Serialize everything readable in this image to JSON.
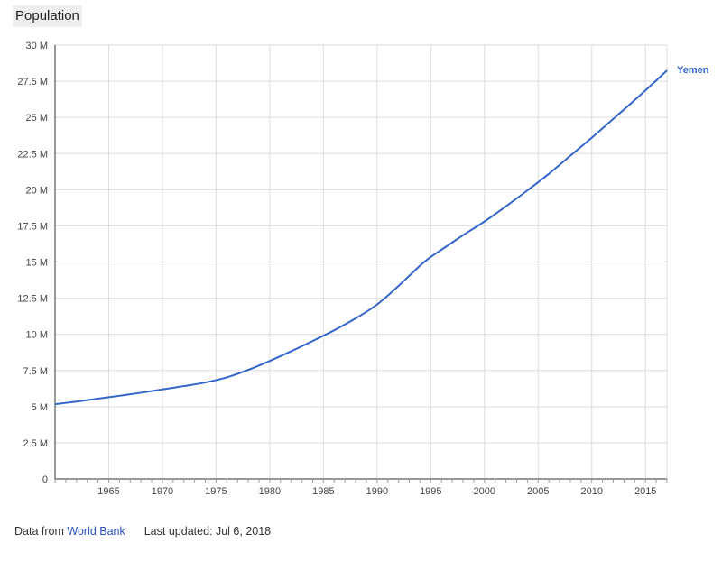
{
  "header": {
    "title": "Population"
  },
  "chart_data": {
    "type": "line",
    "title": "Population",
    "xlabel": "",
    "ylabel": "",
    "xlim": [
      1960,
      2017
    ],
    "ylim": [
      0,
      30000000
    ],
    "grid": true,
    "y_ticks": [
      {
        "value": 0,
        "label": "0"
      },
      {
        "value": 2500000,
        "label": "2.5 M"
      },
      {
        "value": 5000000,
        "label": "5 M"
      },
      {
        "value": 7500000,
        "label": "7.5 M"
      },
      {
        "value": 10000000,
        "label": "10 M"
      },
      {
        "value": 12500000,
        "label": "12.5 M"
      },
      {
        "value": 15000000,
        "label": "15 M"
      },
      {
        "value": 17500000,
        "label": "17.5 M"
      },
      {
        "value": 20000000,
        "label": "20 M"
      },
      {
        "value": 22500000,
        "label": "22.5 M"
      },
      {
        "value": 25000000,
        "label": "25 M"
      },
      {
        "value": 27500000,
        "label": "27.5 M"
      },
      {
        "value": 30000000,
        "label": "30 M"
      }
    ],
    "x_ticks": [
      {
        "value": 1965,
        "label": "1965"
      },
      {
        "value": 1970,
        "label": "1970"
      },
      {
        "value": 1975,
        "label": "1975"
      },
      {
        "value": 1980,
        "label": "1980"
      },
      {
        "value": 1985,
        "label": "1985"
      },
      {
        "value": 1990,
        "label": "1990"
      },
      {
        "value": 1995,
        "label": "1995"
      },
      {
        "value": 2000,
        "label": "2000"
      },
      {
        "value": 2005,
        "label": "2005"
      },
      {
        "value": 2010,
        "label": "2010"
      },
      {
        "value": 2015,
        "label": "2015"
      }
    ],
    "series": [
      {
        "name": "Yemen",
        "color": "#3366cc",
        "x": [
          1960,
          1962,
          1964,
          1966,
          1968,
          1970,
          1972,
          1974,
          1976,
          1978,
          1980,
          1982,
          1984,
          1986,
          1988,
          1990,
          1992,
          1994,
          1995,
          1996,
          1998,
          2000,
          2002,
          2004,
          2006,
          2008,
          2010,
          2012,
          2014,
          2016,
          2017
        ],
        "y": [
          5170000,
          5350000,
          5550000,
          5750000,
          5960000,
          6190000,
          6420000,
          6670000,
          7020000,
          7540000,
          8160000,
          8830000,
          9540000,
          10280000,
          11100000,
          12060000,
          13350000,
          14750000,
          15350000,
          15850000,
          16850000,
          17800000,
          18850000,
          19950000,
          21100000,
          22350000,
          23600000,
          24900000,
          26200000,
          27550000,
          28250000
        ]
      }
    ]
  },
  "footer": {
    "source_prefix": "Data from",
    "source_link": "World Bank",
    "updated": "Last updated: Jul 6, 2018"
  }
}
